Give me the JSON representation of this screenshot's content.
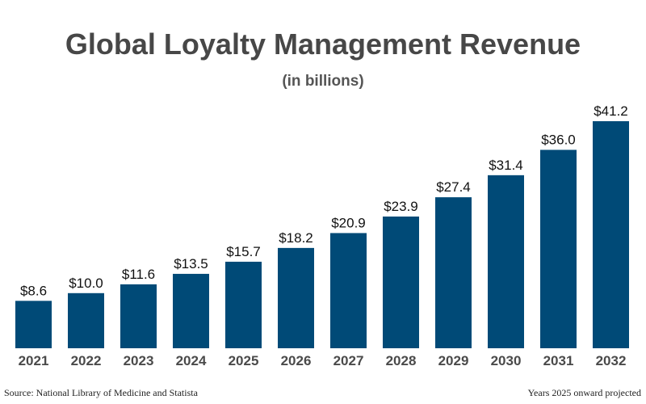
{
  "chart_data": {
    "type": "bar",
    "title": "Global Loyalty Management Revenue",
    "subtitle": "(in billions)",
    "categories": [
      "2021",
      "2022",
      "2023",
      "2024",
      "2025",
      "2026",
      "2027",
      "2028",
      "2029",
      "2030",
      "2031",
      "2032"
    ],
    "values": [
      8.6,
      10.0,
      11.6,
      13.5,
      15.7,
      18.2,
      20.9,
      23.9,
      27.4,
      31.4,
      36.0,
      41.2
    ],
    "value_labels": [
      "$8.6",
      "$10.0",
      "$11.6",
      "$13.5",
      "$15.7",
      "$18.2",
      "$20.9",
      "$23.9",
      "$27.4",
      "$31.4",
      "$36.0",
      "$41.2"
    ],
    "xlabel": "",
    "ylabel": "",
    "ylim": [
      0,
      41.2
    ],
    "grid": false,
    "bar_color": "#004a77"
  },
  "footer": {
    "source": "Source: National Library of Medicine and Statista",
    "note": "Years 2025 onward projected"
  }
}
